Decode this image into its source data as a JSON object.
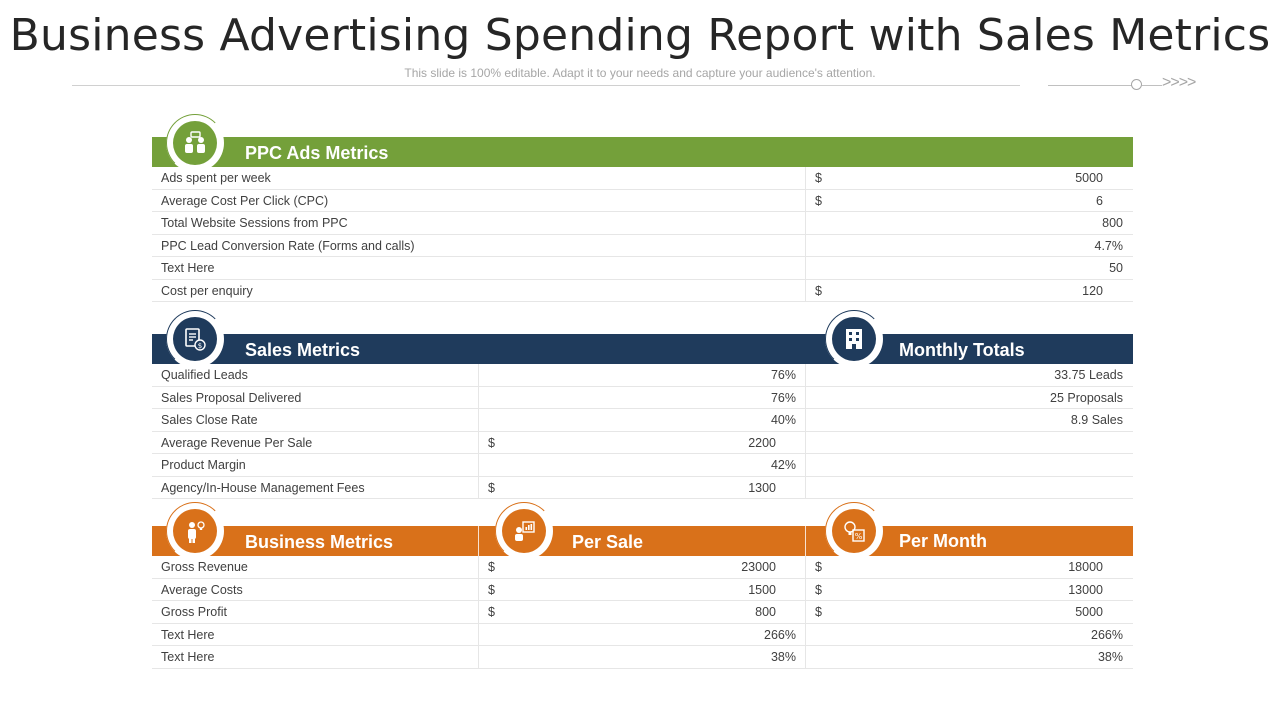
{
  "header": {
    "title": "Business Advertising Spending Report with Sales Metrics",
    "subtitle": "This slide is 100% editable. Adapt it to your needs and capture your audience's attention.",
    "arrows": ">>>>"
  },
  "colors": {
    "green": "#74a03a",
    "navy": "#1f3b5c",
    "orange": "#d9711a"
  },
  "ppc": {
    "title": "PPC Ads Metrics",
    "icon": "team-meeting-icon",
    "rows": [
      {
        "label": "Ads spent per week",
        "currency": "$",
        "value": "5000"
      },
      {
        "label": "Average  Cost Per Click (CPC)",
        "currency": "$",
        "value": "6"
      },
      {
        "label": "Total Website Sessions from PPC",
        "currency": "",
        "value": "800"
      },
      {
        "label": "PPC Lead Conversion  Rate (Forms and calls)",
        "currency": "",
        "value": "4.7%"
      },
      {
        "label": "Text Here",
        "currency": "",
        "value": "50"
      },
      {
        "label": "Cost per enquiry",
        "currency": "$",
        "value": "120"
      }
    ]
  },
  "sales": {
    "title": "Sales Metrics",
    "icon": "invoice-dollar-icon",
    "totals_title": "Monthly Totals",
    "totals_icon": "building-icon",
    "rows": [
      {
        "label": "Qualified Leads",
        "currency": "",
        "value": "76%",
        "total": "33.75 Leads"
      },
      {
        "label": "Sales Proposal Delivered",
        "currency": "",
        "value": "76%",
        "total": "25 Proposals"
      },
      {
        "label": "Sales Close Rate",
        "currency": "",
        "value": "40%",
        "total": "8.9 Sales"
      },
      {
        "label": "Average Revenue  Per Sale",
        "currency": "$",
        "value": "2200",
        "total": ""
      },
      {
        "label": "Product Margin",
        "currency": "",
        "value": "42%",
        "total": ""
      },
      {
        "label": "Agency/In-House Management Fees",
        "currency": "$",
        "value": "1300",
        "total": ""
      }
    ]
  },
  "business": {
    "title": "Business Metrics",
    "icon": "businessman-idea-icon",
    "per_sale_title": "Per Sale",
    "per_sale_icon": "presentation-icon",
    "per_month_title": "Per Month",
    "per_month_icon": "idea-percent-icon",
    "rows": [
      {
        "label": "Gross Revenue",
        "sale_cur": "$",
        "sale": "23000",
        "month_cur": "$",
        "month": "18000"
      },
      {
        "label": "Average  Costs",
        "sale_cur": "$",
        "sale": "1500",
        "month_cur": "$",
        "month": "13000"
      },
      {
        "label": "Gross Profit",
        "sale_cur": "$",
        "sale": "800",
        "month_cur": "$",
        "month": "5000"
      },
      {
        "label": "Text Here",
        "sale_cur": "",
        "sale": "266%",
        "month_cur": "",
        "month": "266%"
      },
      {
        "label": "Text Here",
        "sale_cur": "",
        "sale": "38%",
        "month_cur": "",
        "month": "38%"
      }
    ]
  }
}
